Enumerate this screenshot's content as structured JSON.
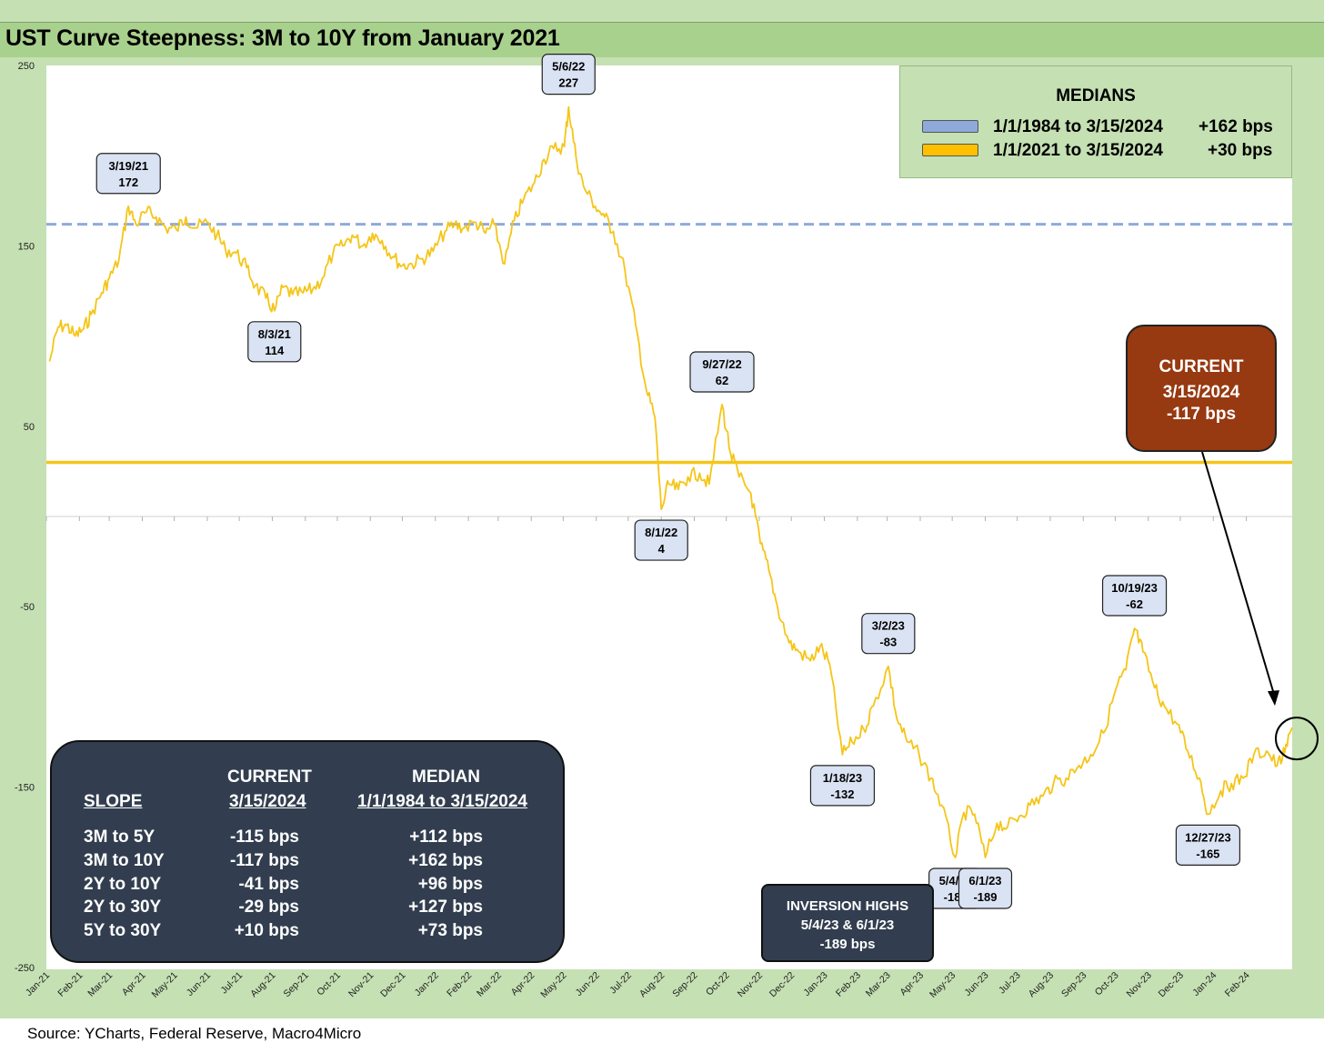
{
  "title": "UST Curve Steepness: 3M to 10Y from January 2021",
  "source": "Source: YCharts, Federal Reserve, Macro4Micro",
  "chart_data": {
    "type": "line",
    "title": "UST Curve Steepness: 3M to 10Y from January 2021",
    "ylim": [
      -250,
      250
    ],
    "yticks": [
      250,
      150,
      50,
      -50,
      -150,
      -250
    ],
    "xlim": [
      "2021-01-01",
      "2024-03-15"
    ],
    "xticks": [
      "Jan-21",
      "Feb-21",
      "Mar-21",
      "Apr-21",
      "May-21",
      "Jun-21",
      "Jul-21",
      "Aug-21",
      "Sep-21",
      "Oct-21",
      "Nov-21",
      "Dec-21",
      "Jan-22",
      "Feb-22",
      "Mar-22",
      "Apr-22",
      "May-22",
      "Jun-22",
      "Jul-22",
      "Aug-22",
      "Sep-22",
      "Oct-22",
      "Nov-22",
      "Dec-22",
      "Jan-23",
      "Feb-23",
      "Mar-23",
      "Apr-23",
      "May-23",
      "Jun-23",
      "Jul-23",
      "Aug-23",
      "Sep-23",
      "Oct-23",
      "Nov-23",
      "Dec-23",
      "Jan-24",
      "Feb-24"
    ],
    "series": [
      {
        "color": "#f5c518",
        "points": [
          [
            "2021-01-04",
            86
          ],
          [
            "2021-01-12",
            105
          ],
          [
            "2021-01-20",
            106
          ],
          [
            "2021-01-28",
            100
          ],
          [
            "2021-02-05",
            104
          ],
          [
            "2021-02-12",
            112
          ],
          [
            "2021-02-22",
            124
          ],
          [
            "2021-03-01",
            132
          ],
          [
            "2021-03-10",
            142
          ],
          [
            "2021-03-19",
            172
          ],
          [
            "2021-03-26",
            162
          ],
          [
            "2021-04-05",
            169
          ],
          [
            "2021-04-14",
            166
          ],
          [
            "2021-04-23",
            160
          ],
          [
            "2021-05-03",
            159
          ],
          [
            "2021-05-12",
            166
          ],
          [
            "2021-05-21",
            160
          ],
          [
            "2021-06-01",
            163
          ],
          [
            "2021-06-10",
            156
          ],
          [
            "2021-06-18",
            148
          ],
          [
            "2021-06-28",
            146
          ],
          [
            "2021-07-08",
            138
          ],
          [
            "2021-07-16",
            128
          ],
          [
            "2021-07-26",
            121
          ],
          [
            "2021-08-03",
            114
          ],
          [
            "2021-08-11",
            127
          ],
          [
            "2021-08-20",
            123
          ],
          [
            "2021-08-30",
            124
          ],
          [
            "2021-09-08",
            126
          ],
          [
            "2021-09-17",
            132
          ],
          [
            "2021-09-27",
            146
          ],
          [
            "2021-10-06",
            150
          ],
          [
            "2021-10-15",
            156
          ],
          [
            "2021-10-25",
            150
          ],
          [
            "2021-11-03",
            157
          ],
          [
            "2021-11-12",
            153
          ],
          [
            "2021-11-22",
            144
          ],
          [
            "2021-12-01",
            139
          ],
          [
            "2021-12-10",
            140
          ],
          [
            "2021-12-20",
            143
          ],
          [
            "2021-12-30",
            147
          ],
          [
            "2022-01-10",
            158
          ],
          [
            "2022-01-19",
            162
          ],
          [
            "2022-01-28",
            160
          ],
          [
            "2022-02-08",
            163
          ],
          [
            "2022-02-17",
            157
          ],
          [
            "2022-02-25",
            162
          ],
          [
            "2022-03-07",
            140
          ],
          [
            "2022-03-16",
            164
          ],
          [
            "2022-03-25",
            176
          ],
          [
            "2022-04-04",
            185
          ],
          [
            "2022-04-13",
            198
          ],
          [
            "2022-04-22",
            204
          ],
          [
            "2022-05-02",
            205
          ],
          [
            "2022-05-06",
            227
          ],
          [
            "2022-05-13",
            199
          ],
          [
            "2022-05-20",
            183
          ],
          [
            "2022-05-31",
            172
          ],
          [
            "2022-06-09",
            166
          ],
          [
            "2022-06-17",
            158
          ],
          [
            "2022-06-28",
            136
          ],
          [
            "2022-07-08",
            106
          ],
          [
            "2022-07-18",
            70
          ],
          [
            "2022-07-26",
            55
          ],
          [
            "2022-08-01",
            4
          ],
          [
            "2022-08-08",
            18
          ],
          [
            "2022-08-17",
            15
          ],
          [
            "2022-08-26",
            22
          ],
          [
            "2022-09-06",
            24
          ],
          [
            "2022-09-15",
            18
          ],
          [
            "2022-09-27",
            62
          ],
          [
            "2022-10-05",
            35
          ],
          [
            "2022-10-13",
            22
          ],
          [
            "2022-10-24",
            13
          ],
          [
            "2022-11-02",
            -15
          ],
          [
            "2022-11-10",
            -30
          ],
          [
            "2022-11-18",
            -50
          ],
          [
            "2022-11-29",
            -70
          ],
          [
            "2022-12-08",
            -75
          ],
          [
            "2022-12-19",
            -80
          ],
          [
            "2022-12-28",
            -72
          ],
          [
            "2023-01-06",
            -82
          ],
          [
            "2023-01-18",
            -132
          ],
          [
            "2023-01-27",
            -125
          ],
          [
            "2023-02-07",
            -118
          ],
          [
            "2023-02-16",
            -105
          ],
          [
            "2023-03-02",
            -83
          ],
          [
            "2023-03-10",
            -112
          ],
          [
            "2023-03-20",
            -125
          ],
          [
            "2023-03-31",
            -132
          ],
          [
            "2023-04-11",
            -145
          ],
          [
            "2023-04-21",
            -160
          ],
          [
            "2023-05-04",
            -189
          ],
          [
            "2023-05-12",
            -164
          ],
          [
            "2023-05-22",
            -165
          ],
          [
            "2023-06-01",
            -189
          ],
          [
            "2023-06-12",
            -170
          ],
          [
            "2023-06-22",
            -172
          ],
          [
            "2023-07-03",
            -166
          ],
          [
            "2023-07-13",
            -160
          ],
          [
            "2023-07-25",
            -155
          ],
          [
            "2023-08-04",
            -148
          ],
          [
            "2023-08-16",
            -145
          ],
          [
            "2023-08-28",
            -138
          ],
          [
            "2023-09-08",
            -132
          ],
          [
            "2023-09-20",
            -120
          ],
          [
            "2023-10-02",
            -95
          ],
          [
            "2023-10-11",
            -85
          ],
          [
            "2023-10-19",
            -62
          ],
          [
            "2023-10-27",
            -75
          ],
          [
            "2023-11-07",
            -95
          ],
          [
            "2023-11-16",
            -105
          ],
          [
            "2023-11-28",
            -115
          ],
          [
            "2023-12-08",
            -130
          ],
          [
            "2023-12-19",
            -145
          ],
          [
            "2023-12-27",
            -165
          ],
          [
            "2024-01-08",
            -152
          ],
          [
            "2024-01-18",
            -148
          ],
          [
            "2024-01-29",
            -145
          ],
          [
            "2024-02-08",
            -132
          ],
          [
            "2024-02-20",
            -130
          ],
          [
            "2024-03-01",
            -138
          ],
          [
            "2024-03-08",
            -131
          ],
          [
            "2024-03-15",
            -117
          ]
        ]
      }
    ],
    "reference_lines": [
      {
        "value": 162,
        "style": "dashed",
        "color": "#8eaadb"
      },
      {
        "value": 30,
        "style": "solid",
        "color": "#f5c518"
      }
    ],
    "annotations": [
      {
        "date": "2021-03-19",
        "label_line1": "3/19/21",
        "label_line2": "172"
      },
      {
        "date": "2021-08-03",
        "label_line1": "8/3/21",
        "label_line2": "114"
      },
      {
        "date": "2022-05-06",
        "label_line1": "5/6/22",
        "label_line2": "227"
      },
      {
        "date": "2022-08-01",
        "label_line1": "8/1/22",
        "label_line2": "4"
      },
      {
        "date": "2022-09-27",
        "label_line1": "9/27/22",
        "label_line2": "62"
      },
      {
        "date": "2023-01-18",
        "label_line1": "1/18/23",
        "label_line2": "-132"
      },
      {
        "date": "2023-03-02",
        "label_line1": "3/2/23",
        "label_line2": "-83"
      },
      {
        "date": "2023-05-04",
        "label_line1": "5/4/23",
        "label_line2": "-189"
      },
      {
        "date": "2023-06-01",
        "label_line1": "6/1/23",
        "label_line2": "-189"
      },
      {
        "date": "2023-10-19",
        "label_line1": "10/19/23",
        "label_line2": "-62"
      },
      {
        "date": "2023-12-27",
        "label_line1": "12/27/23",
        "label_line2": "-165"
      }
    ]
  },
  "medians": {
    "title": "MEDIANS",
    "rows": [
      {
        "range": "1/1/1984 to 3/15/2024",
        "value": "+162 bps",
        "color": "#8eaadb"
      },
      {
        "range": "1/1/2021 to 3/15/2024",
        "value": "+30 bps",
        "color": "#ffc000"
      }
    ]
  },
  "current": {
    "line1": "CURRENT",
    "line2": "3/15/2024",
    "line3": "-117 bps",
    "color": "#973911"
  },
  "slope_table": {
    "header_current": "CURRENT",
    "header_median": "MEDIAN",
    "col_slope": "SLOPE",
    "col_current_date": "3/15/2024",
    "col_median_range": "1/1/1984 to 3/15/2024",
    "rows": [
      {
        "slope": "3M to 5Y",
        "current": "-115 bps",
        "median": "+112 bps"
      },
      {
        "slope": "3M to 10Y",
        "current": "-117 bps",
        "median": "+162 bps"
      },
      {
        "slope": "2Y to 10Y",
        "current": "-41 bps",
        "median": "+96 bps"
      },
      {
        "slope": "2Y to 30Y",
        "current": "-29 bps",
        "median": "+127 bps"
      },
      {
        "slope": "5Y to 30Y",
        "current": "+10 bps",
        "median": "+73 bps"
      }
    ]
  },
  "inversion": {
    "line1": "INVERSION HIGHS",
    "line2": "5/4/23 & 6/1/23",
    "line3": "-189 bps"
  }
}
